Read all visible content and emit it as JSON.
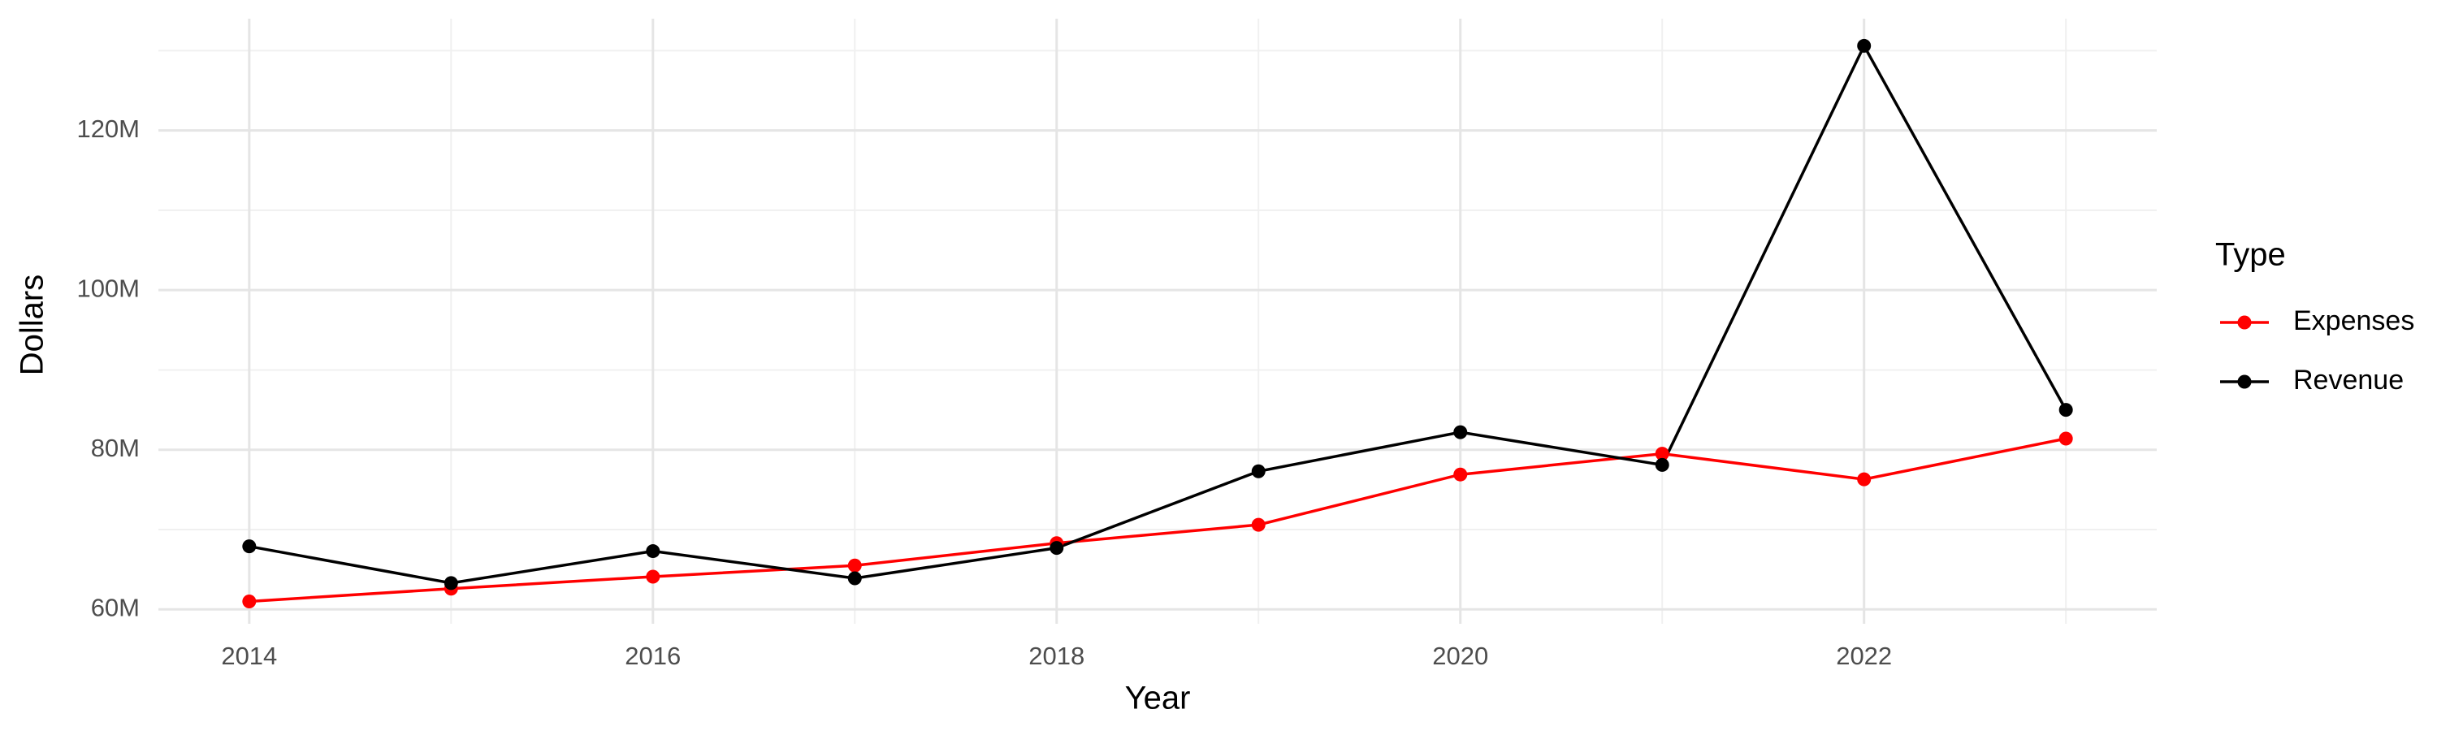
{
  "chart_data": {
    "type": "line",
    "x_label": "Year",
    "y_label": "Dollars",
    "x": [
      2014,
      2015,
      2016,
      2017,
      2018,
      2019,
      2020,
      2021,
      2022,
      2023
    ],
    "series": [
      {
        "name": "Expenses",
        "color": "#ff0000",
        "values": [
          61000000,
          62600000,
          64100000,
          65500000,
          68300000,
          70600000,
          76900000,
          79500000,
          76300000,
          81400000
        ]
      },
      {
        "name": "Revenue",
        "color": "#000000",
        "values": [
          67900000,
          63300000,
          67300000,
          63900000,
          67700000,
          77300000,
          82200000,
          78100000,
          130600000,
          85000000
        ]
      }
    ],
    "xlim": [
      2013.55,
      2023.45
    ],
    "xticks": [
      2014,
      2016,
      2018,
      2020,
      2022
    ],
    "x_minor_ticks": [
      2015,
      2017,
      2019,
      2021,
      2023
    ],
    "ylim": [
      58200000,
      134000000
    ],
    "yticks": [
      {
        "value": 60000000,
        "label": "60M"
      },
      {
        "value": 80000000,
        "label": "80M"
      },
      {
        "value": 100000000,
        "label": "100M"
      },
      {
        "value": 120000000,
        "label": "120M"
      }
    ],
    "y_minor_ticks": [
      70000000,
      90000000,
      110000000,
      130000000
    ],
    "grid": true,
    "legend_title": "Type",
    "legend_position": "right"
  }
}
